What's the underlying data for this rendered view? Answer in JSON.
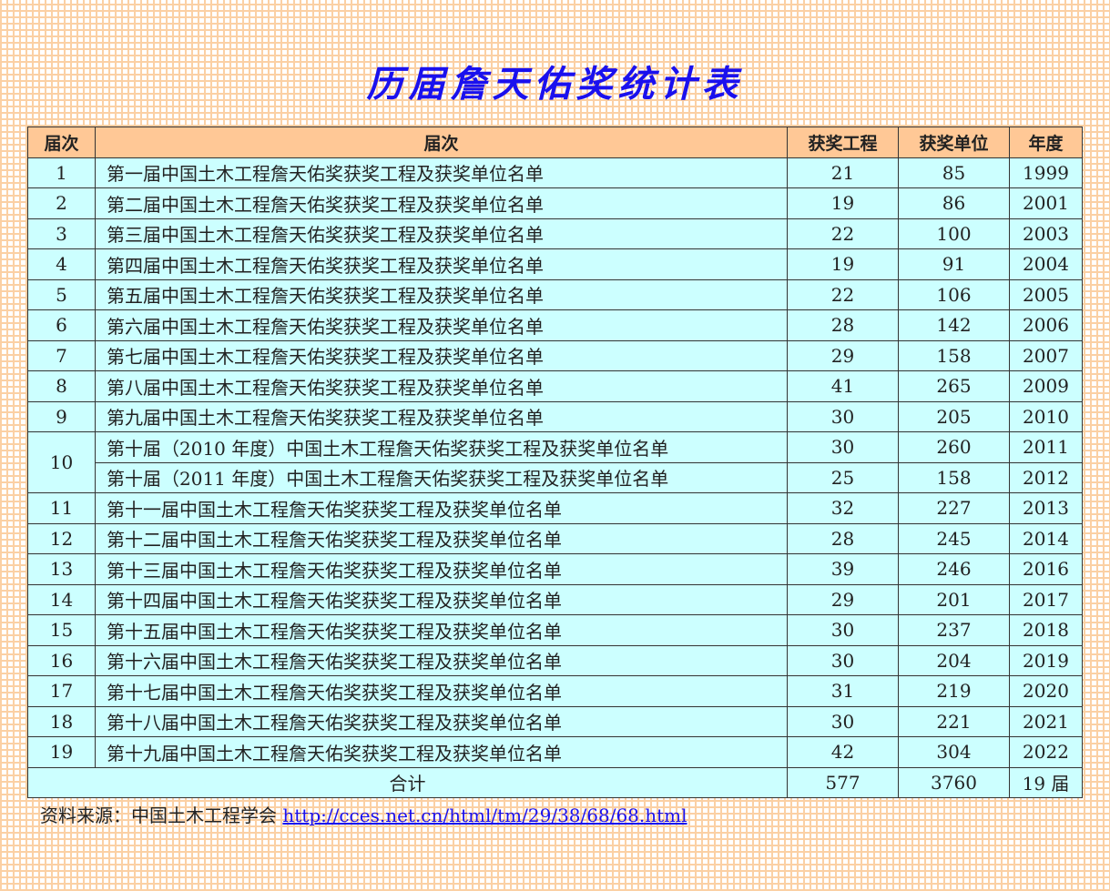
{
  "title": "历届詹天佑奖统计表",
  "headers": [
    "届次",
    "届次",
    "获奖工程",
    "获奖单位",
    "年度"
  ],
  "rows": [
    {
      "no": "1",
      "name": "第一届中国土木工程詹天佑奖获奖工程及获奖单位名单",
      "projects": "21",
      "units": "85",
      "year": "1999"
    },
    {
      "no": "2",
      "name": "第二届中国土木工程詹天佑奖获奖工程及获奖单位名单",
      "projects": "19",
      "units": "86",
      "year": "2001"
    },
    {
      "no": "3",
      "name": "第三届中国土木工程詹天佑奖获奖工程及获奖单位名单",
      "projects": "22",
      "units": "100",
      "year": "2003"
    },
    {
      "no": "4",
      "name": "第四届中国土木工程詹天佑奖获奖工程及获奖单位名单",
      "projects": "19",
      "units": "91",
      "year": "2004"
    },
    {
      "no": "5",
      "name": "第五届中国土木工程詹天佑奖获奖工程及获奖单位名单",
      "projects": "22",
      "units": "106",
      "year": "2005"
    },
    {
      "no": "6",
      "name": "第六届中国土木工程詹天佑奖获奖工程及获奖单位名单",
      "projects": "28",
      "units": "142",
      "year": "2006"
    },
    {
      "no": "7",
      "name": "第七届中国土木工程詹天佑奖获奖工程及获奖单位名单",
      "projects": "29",
      "units": "158",
      "year": "2007"
    },
    {
      "no": "8",
      "name": "第八届中国土木工程詹天佑奖获奖工程及获奖单位名单",
      "projects": "41",
      "units": "265",
      "year": "2009"
    },
    {
      "no": "9",
      "name": "第九届中国土木工程詹天佑奖获奖工程及获奖单位名单",
      "projects": "30",
      "units": "205",
      "year": "2010"
    },
    {
      "no": "10",
      "name": "第十届（2010 年度）中国土木工程詹天佑奖获奖工程及获奖单位名单",
      "projects": "30",
      "units": "260",
      "year": "2011"
    },
    {
      "no": "",
      "name": "第十届（2011 年度）中国土木工程詹天佑奖获奖工程及获奖单位名单",
      "projects": "25",
      "units": "158",
      "year": "2012"
    },
    {
      "no": "11",
      "name": "第十一届中国土木工程詹天佑奖获奖工程及获奖单位名单",
      "projects": "32",
      "units": "227",
      "year": "2013"
    },
    {
      "no": "12",
      "name": "第十二届中国土木工程詹天佑奖获奖工程及获奖单位名单",
      "projects": "28",
      "units": "245",
      "year": "2014"
    },
    {
      "no": "13",
      "name": "第十三届中国土木工程詹天佑奖获奖工程及获奖单位名单",
      "projects": "39",
      "units": "246",
      "year": "2016"
    },
    {
      "no": "14",
      "name": "第十四届中国土木工程詹天佑奖获奖工程及获奖单位名单",
      "projects": "29",
      "units": "201",
      "year": "2017"
    },
    {
      "no": "15",
      "name": "第十五届中国土木工程詹天佑奖获奖工程及获奖单位名单",
      "projects": "30",
      "units": "237",
      "year": "2018"
    },
    {
      "no": "16",
      "name": "第十六届中国土木工程詹天佑奖获奖工程及获奖单位名单",
      "projects": "30",
      "units": "204",
      "year": "2019"
    },
    {
      "no": "17",
      "name": "第十七届中国土木工程詹天佑奖获奖工程及获奖单位名单",
      "projects": "31",
      "units": "219",
      "year": "2020"
    },
    {
      "no": "18",
      "name": "第十八届中国土木工程詹天佑奖获奖工程及获奖单位名单",
      "projects": "30",
      "units": "221",
      "year": "2021"
    },
    {
      "no": "19",
      "name": "第十九届中国土木工程詹天佑奖获奖工程及获奖单位名单",
      "projects": "42",
      "units": "304",
      "year": "2022"
    }
  ],
  "total": {
    "label": "合计",
    "projects": "577",
    "units": "3760",
    "year": "19 届"
  },
  "source": {
    "label": "资料来源：中国土木工程学会 ",
    "link": "http://cces.net.cn/html/tm/29/38/68/68.html"
  }
}
